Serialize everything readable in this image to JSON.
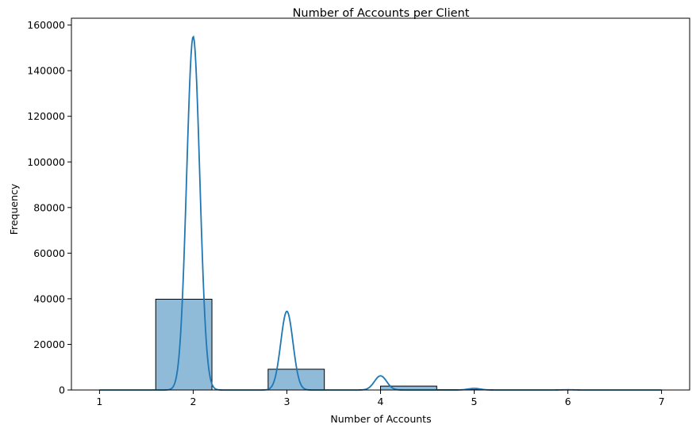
{
  "chart_data": {
    "type": "bar",
    "title": "Number of Accounts per Client",
    "xlabel": "Number of Accounts",
    "ylabel": "Frequency",
    "xlim": [
      0.7,
      7.3
    ],
    "ylim": [
      0,
      163000
    ],
    "xticks": [
      1,
      2,
      3,
      4,
      5,
      6,
      7
    ],
    "yticks": [
      0,
      20000,
      40000,
      60000,
      80000,
      100000,
      120000,
      140000,
      160000
    ],
    "grid": false,
    "bins": [
      {
        "x0": 1.0,
        "x1": 1.6,
        "value": 0
      },
      {
        "x0": 1.6,
        "x1": 2.2,
        "value": 39800
      },
      {
        "x0": 2.2,
        "x1": 2.8,
        "value": 0
      },
      {
        "x0": 2.8,
        "x1": 3.4,
        "value": 9100
      },
      {
        "x0": 3.4,
        "x1": 4.0,
        "value": 0
      },
      {
        "x0": 4.0,
        "x1": 4.6,
        "value": 1700
      },
      {
        "x0": 4.6,
        "x1": 5.2,
        "value": 150
      },
      {
        "x0": 5.2,
        "x1": 5.8,
        "value": 30
      },
      {
        "x0": 5.8,
        "x1": 6.4,
        "value": 10
      },
      {
        "x0": 6.4,
        "x1": 7.0,
        "value": 5
      }
    ],
    "kde": {
      "peaks": [
        {
          "x": 2,
          "height": 155000,
          "width": 0.07
        },
        {
          "x": 3,
          "height": 34500,
          "width": 0.065
        },
        {
          "x": 4,
          "height": 6200,
          "width": 0.065
        },
        {
          "x": 5,
          "height": 700,
          "width": 0.065
        },
        {
          "x": 6,
          "height": 100,
          "width": 0.065
        }
      ]
    },
    "colors": {
      "bar_fill": "#1f77b4",
      "bar_fill_opacity": 0.5,
      "bar_edge": "#000000",
      "kde_line": "#1f77b4"
    }
  }
}
